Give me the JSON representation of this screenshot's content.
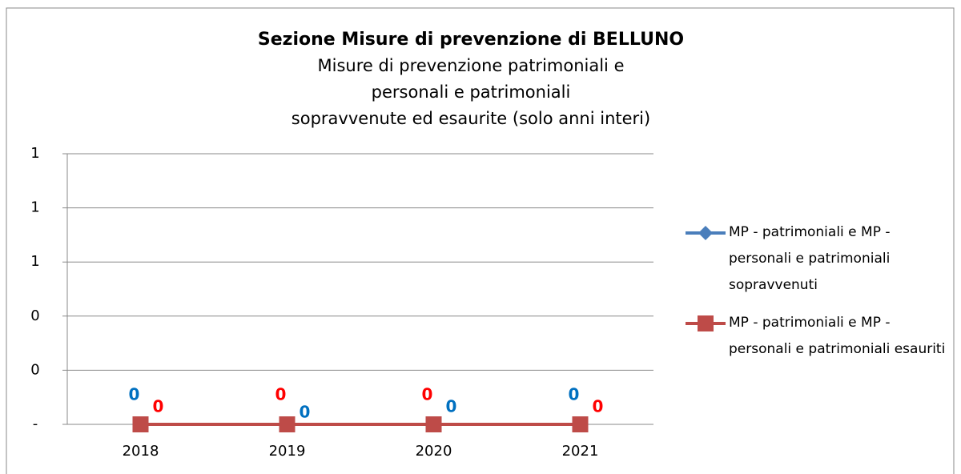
{
  "chart_data": {
    "type": "line",
    "title": "Sezione Misure di prevenzione di BELLUNO",
    "subtitle": [
      "Misure di prevenzione patrimoniali e",
      "personali e patrimoniali",
      "sopravvenute ed esaurite (solo anni interi)"
    ],
    "categories": [
      "2018",
      "2019",
      "2020",
      "2021"
    ],
    "series": [
      {
        "name": "MP - patrimoniali e MP - personali e patrimoniali sopravvenuti",
        "color": "#4a7ebb",
        "label_color": "#0070c0",
        "marker": "diamond",
        "values": [
          0,
          0,
          0,
          0
        ]
      },
      {
        "name": "MP - patrimoniali e MP - personali e patrimoniali esauriti",
        "color": "#be4b48",
        "label_color": "#ff0000",
        "marker": "square",
        "values": [
          0,
          0,
          0,
          0
        ]
      }
    ],
    "ylim": [
      0,
      1
    ],
    "yticks": [
      {
        "value": 0,
        "label": "-"
      },
      {
        "value": 0.2,
        "label": "0"
      },
      {
        "value": 0.4,
        "label": "0"
      },
      {
        "value": 0.6,
        "label": "1"
      },
      {
        "value": 0.8,
        "label": "1"
      },
      {
        "value": 1,
        "label": "1"
      }
    ],
    "grid": true,
    "legend": "right"
  }
}
